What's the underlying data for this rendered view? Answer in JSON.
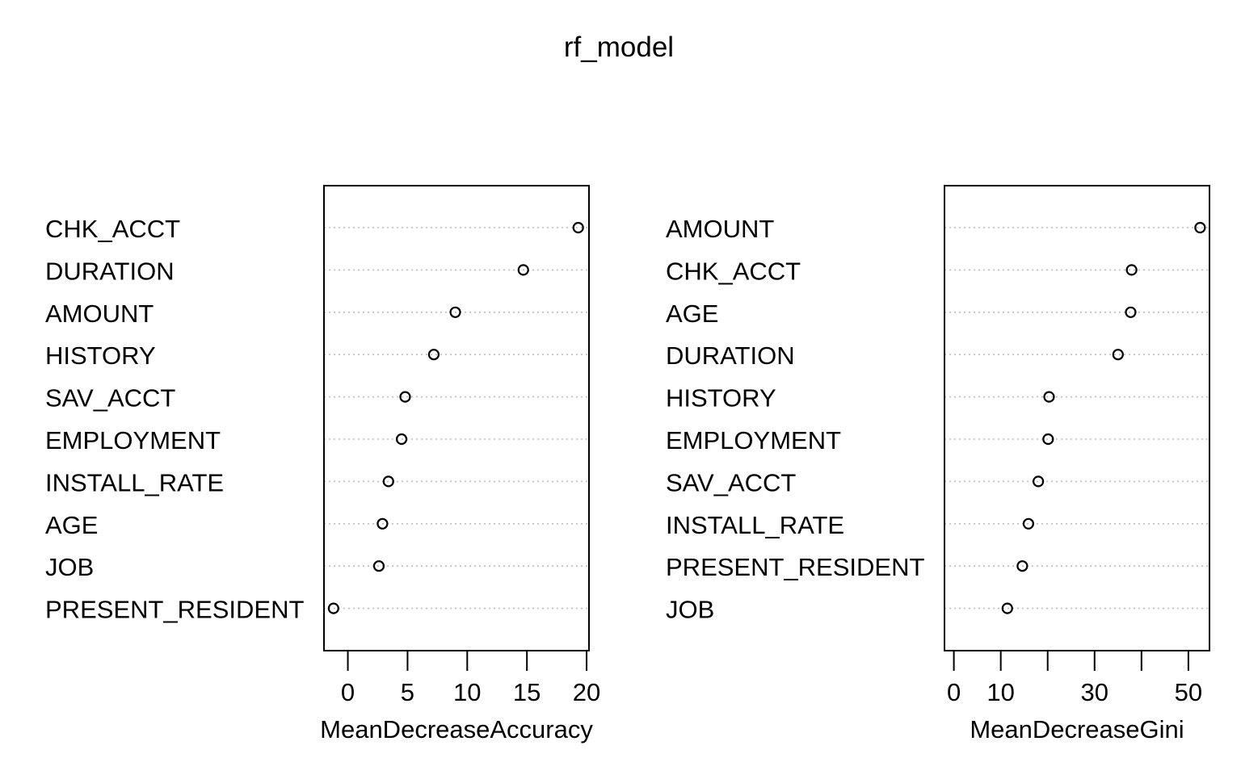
{
  "title": "rf_model",
  "chart_data": [
    {
      "type": "scatter",
      "subtype": "dotchart",
      "xlabel": "MeanDecreaseAccuracy",
      "ylabel": "",
      "xlim": [
        -2,
        20.2
      ],
      "xticks": [
        0,
        5,
        10,
        15,
        20
      ],
      "grid": "dotted horizontal guide lines",
      "categories": [
        "CHK_ACCT",
        "DURATION",
        "AMOUNT",
        "HISTORY",
        "SAV_ACCT",
        "EMPLOYMENT",
        "INSTALL_RATE",
        "AGE",
        "JOB",
        "PRESENT_RESIDENT"
      ],
      "values": [
        19.3,
        14.7,
        9.0,
        7.2,
        4.8,
        4.5,
        3.4,
        2.9,
        2.6,
        -1.2
      ]
    },
    {
      "type": "scatter",
      "subtype": "dotchart",
      "xlabel": "MeanDecreaseGini",
      "ylabel": "",
      "xlim": [
        -2,
        54.5
      ],
      "xticks": [
        0,
        10,
        20,
        30,
        40,
        50
      ],
      "xtick_labels": [
        "0",
        "10",
        "",
        "30",
        "",
        "50"
      ],
      "grid": "dotted horizontal guide lines",
      "categories": [
        "AMOUNT",
        "CHK_ACCT",
        "AGE",
        "DURATION",
        "HISTORY",
        "EMPLOYMENT",
        "SAV_ACCT",
        "INSTALL_RATE",
        "PRESENT_RESIDENT",
        "JOB"
      ],
      "values": [
        52.5,
        37.9,
        37.7,
        35.0,
        20.3,
        20.1,
        18.0,
        15.9,
        14.6,
        11.4
      ]
    }
  ]
}
